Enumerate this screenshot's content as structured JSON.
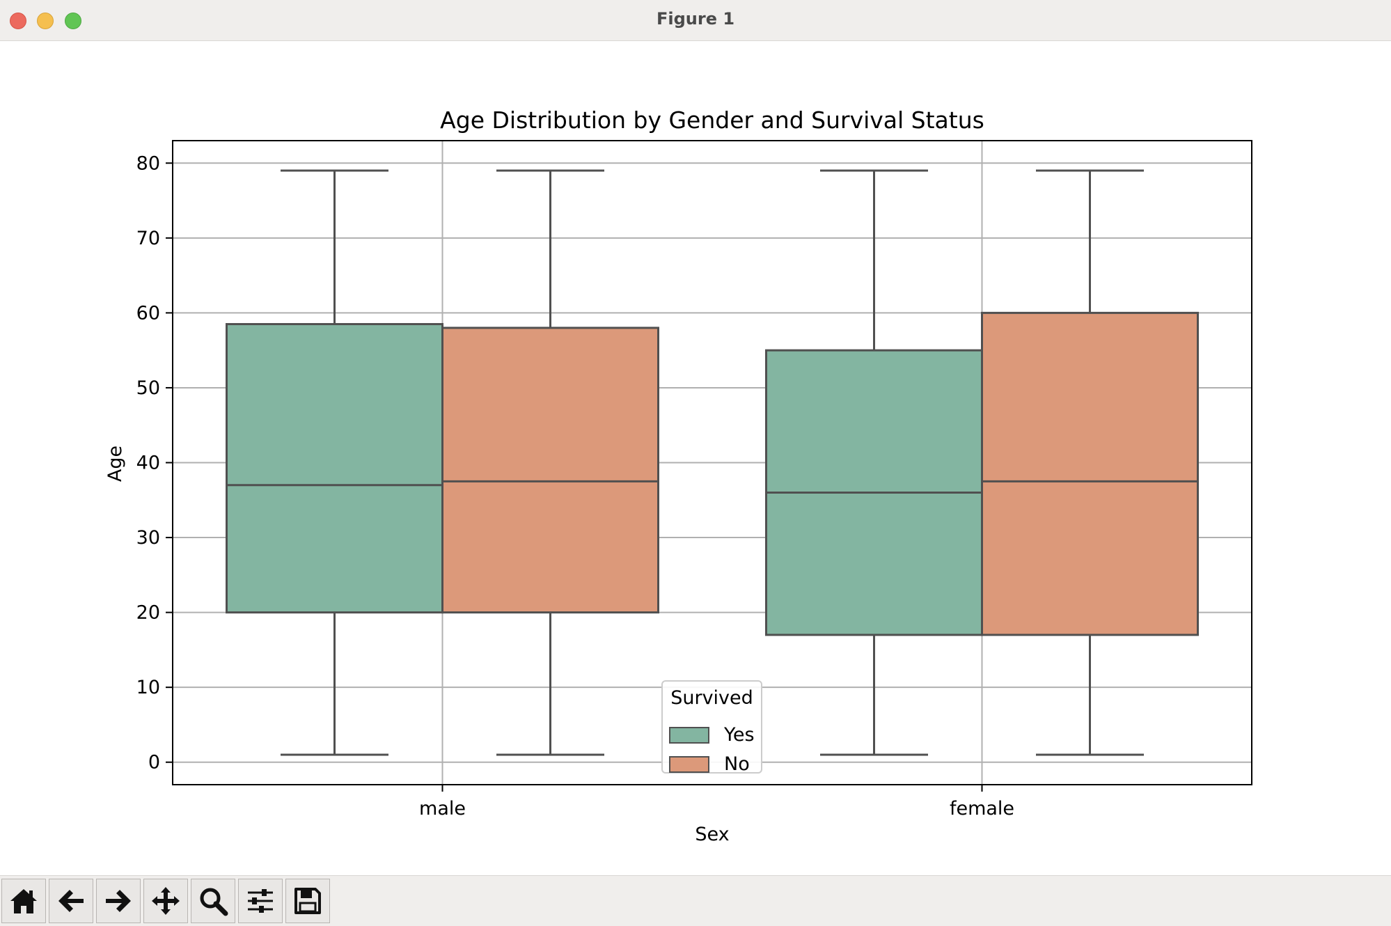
{
  "window": {
    "title": "Figure 1"
  },
  "toolbar": {
    "buttons": [
      {
        "name": "home-icon"
      },
      {
        "name": "back-arrow-icon"
      },
      {
        "name": "forward-arrow-icon"
      },
      {
        "name": "pan-icon"
      },
      {
        "name": "zoom-icon"
      },
      {
        "name": "configure-subplots-icon"
      },
      {
        "name": "save-icon"
      }
    ]
  },
  "chart_data": {
    "type": "box",
    "title": "Age Distribution by Gender and Survival Status",
    "xlabel": "Sex",
    "ylabel": "Age",
    "categories": [
      "male",
      "female"
    ],
    "ylim": [
      -3,
      83
    ],
    "yticks": [
      0,
      10,
      20,
      30,
      40,
      50,
      60,
      70,
      80
    ],
    "grid": true,
    "legend": {
      "title": "Survived",
      "placement": "lower center"
    },
    "series": [
      {
        "name": "Yes",
        "color": "#83b5a1",
        "boxes": [
          {
            "category": "male",
            "whisker_low": 1,
            "q1": 20,
            "median": 37,
            "q3": 58.5,
            "whisker_high": 79
          },
          {
            "category": "female",
            "whisker_low": 1,
            "q1": 17,
            "median": 36,
            "q3": 55,
            "whisker_high": 79
          }
        ]
      },
      {
        "name": "No",
        "color": "#dc997a",
        "boxes": [
          {
            "category": "male",
            "whisker_low": 1,
            "q1": 20,
            "median": 37.5,
            "q3": 58,
            "whisker_high": 79
          },
          {
            "category": "female",
            "whisker_low": 1,
            "q1": 17,
            "median": 37.5,
            "q3": 60,
            "whisker_high": 79
          }
        ]
      }
    ]
  }
}
